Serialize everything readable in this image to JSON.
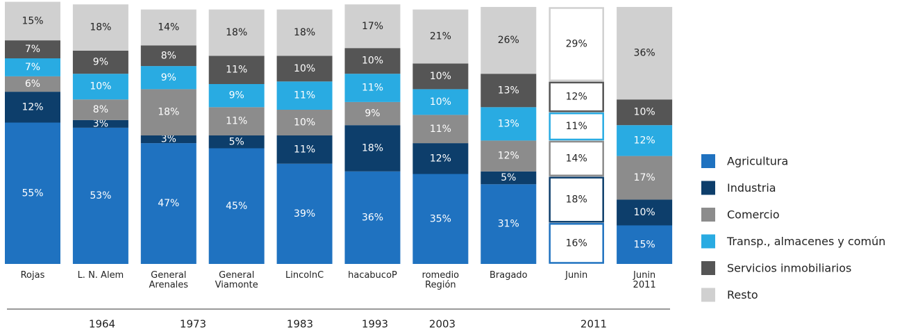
{
  "chart_data": {
    "type": "stacked_bar",
    "categories": [
      "Rojas",
      "L. N. Alem",
      "General\nArenales",
      "General\nViamonte",
      "LincolnC",
      "hacabucoP",
      "romedio\nRegión",
      "Bragado",
      "Junin",
      "Junin\n2011"
    ],
    "periods": [
      "1964",
      "1973",
      "1983",
      "1993",
      "2003",
      "2011"
    ],
    "outlined_index": 8,
    "ylim": [
      0,
      100
    ],
    "series": [
      {
        "name": "Agricultura",
        "color": "#1f72c0",
        "values": [
          55,
          53,
          47,
          45,
          39,
          36,
          35,
          31,
          16,
          15
        ],
        "value_labels": [
          "55%",
          "53%",
          "47%",
          "45%",
          "39%",
          "36%",
          "35%",
          "31%",
          "16%",
          "15%"
        ]
      },
      {
        "name": "Industria",
        "color": "#0d3e6b",
        "values": [
          12,
          3,
          3,
          5,
          11,
          18,
          12,
          5,
          18,
          10
        ],
        "value_labels": [
          "12%",
          "3%",
          "3%",
          "5%",
          "11%",
          "18%",
          "12%",
          "5%",
          "18%",
          "10%"
        ]
      },
      {
        "name": "Comercio",
        "color": "#8c8c8c",
        "values": [
          6,
          8,
          18,
          11,
          10,
          9,
          11,
          12,
          14,
          17
        ],
        "value_labels": [
          "6%",
          "8%",
          "18%",
          "11%",
          "10%",
          "9%",
          "11%",
          "12%",
          "14%",
          "17%"
        ]
      },
      {
        "name": "Transp., almacenes y común",
        "color": "#29abe2",
        "values": [
          7,
          10,
          9,
          9,
          11,
          11,
          10,
          13,
          11,
          12
        ],
        "value_labels": [
          "7%",
          "10%",
          "9%",
          "9%",
          "11%",
          "11%",
          "10%",
          "13%",
          "11%",
          "12%"
        ]
      },
      {
        "name": "Servicios inmobiliarios",
        "color": "#555555",
        "values": [
          7,
          9,
          8,
          11,
          10,
          10,
          10,
          13,
          12,
          10
        ],
        "value_labels": [
          "7%",
          "9%",
          "8%",
          "11%",
          "10%",
          "10%",
          "10%",
          "13%",
          "12%",
          "10%"
        ]
      },
      {
        "name": "Resto",
        "color": "#d0d0d0",
        "values": [
          15,
          18,
          14,
          18,
          18,
          17,
          21,
          26,
          29,
          36
        ],
        "value_labels": [
          "15%",
          "18%",
          "14%",
          "18%",
          "18%",
          "17%",
          "21%",
          "26%",
          "29%",
          "36%"
        ]
      }
    ]
  }
}
